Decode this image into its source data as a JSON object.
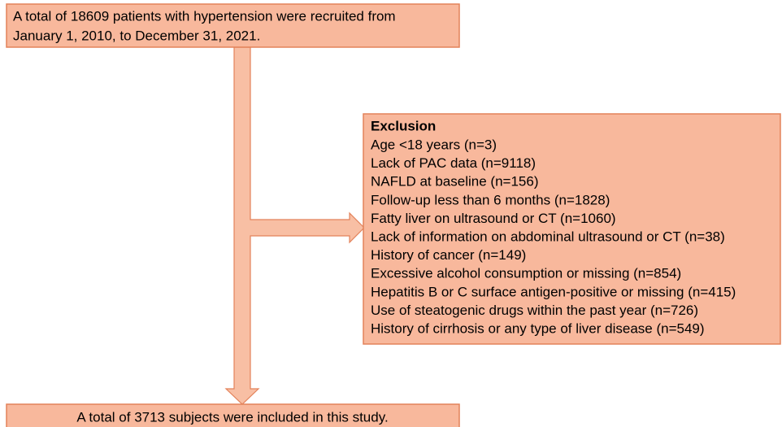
{
  "nodes": [
    {
      "lines": [
        "A total of 18609 patients with hypertension were recruited from",
        "January 1, 2010, to December 31, 2021."
      ]
    },
    {
      "title": "Exclusion",
      "items": [
        "Age <18 years (n=3)",
        "Lack of PAC data (n=9118)",
        "NAFLD at baseline (n=156)",
        "Follow-up less than 6 months (n=1828)",
        "Fatty liver on ultrasound or CT (n=1060)",
        "Lack of information on abdominal ultrasound or CT (n=38)",
        "History of cancer (n=149)",
        "Excessive alcohol consumption or missing (n=854)",
        "Hepatitis B or C surface antigen-positive or missing (n=415)",
        "Use of steatogenic drugs within the past year (n=726)",
        "History of cirrhosis or any type of liver disease (n=549)"
      ]
    },
    {
      "text": "A total of 3713 subjects were included in this study."
    }
  ]
}
